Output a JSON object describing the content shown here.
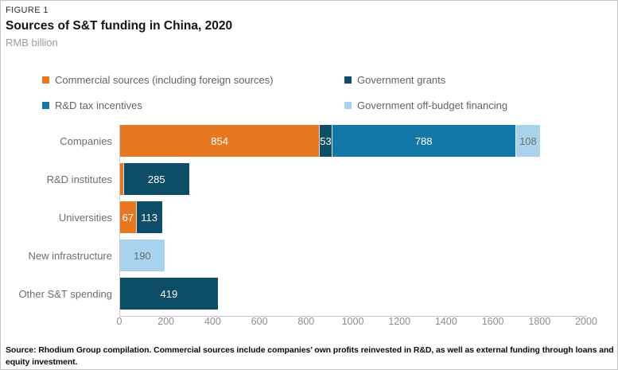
{
  "header": {
    "figure_label": "FIGURE 1",
    "title": "Sources of S&T funding in China, 2020",
    "subtitle": "RMB billion"
  },
  "legend": {
    "items": [
      {
        "key": "commercial",
        "label": "Commercial sources (including foreign sources)"
      },
      {
        "key": "grants",
        "label": "Government grants"
      },
      {
        "key": "tax",
        "label": "R&D tax incentives"
      },
      {
        "key": "offbudget",
        "label": "Government off-budget financing"
      }
    ]
  },
  "chart_data": {
    "type": "bar",
    "orientation": "horizontal",
    "title": "Sources of S&T funding in China, 2020",
    "units": "RMB billion",
    "xlim": [
      0,
      2000
    ],
    "xticks": [
      0,
      200,
      400,
      600,
      800,
      1000,
      1200,
      1400,
      1600,
      1800,
      2000
    ],
    "grid": "off",
    "legend_position": "top",
    "categories": [
      "Companies",
      "R&D institutes",
      "Universities",
      "New infrastructure",
      "Other S&T spending"
    ],
    "series_colors": {
      "commercial": "#E87722",
      "grants": "#0D4D68",
      "tax": "#1377A8",
      "offbudget": "#A9D3EC"
    },
    "label_colors": {
      "commercial": "#ffffff",
      "grants": "#ffffff",
      "tax": "#ffffff",
      "offbudget": "#6e6e6e"
    },
    "rows": [
      {
        "category": "Companies",
        "segments": [
          {
            "series": "commercial",
            "value": 854,
            "label": "854"
          },
          {
            "series": "grants",
            "value": 53,
            "label": "53"
          },
          {
            "series": "tax",
            "value": 788,
            "label": "788"
          },
          {
            "series": "offbudget",
            "value": 108,
            "label": "108"
          }
        ]
      },
      {
        "category": "R&D institutes",
        "segments": [
          {
            "series": "commercial",
            "value": 12,
            "label": ""
          },
          {
            "series": "grants",
            "value": 285,
            "label": "285"
          }
        ]
      },
      {
        "category": "Universities",
        "segments": [
          {
            "series": "commercial",
            "value": 67,
            "label": "67"
          },
          {
            "series": "grants",
            "value": 113,
            "label": "113"
          }
        ]
      },
      {
        "category": "New infrastructure",
        "segments": [
          {
            "series": "offbudget",
            "value": 190,
            "label": "190"
          }
        ]
      },
      {
        "category": "Other S&T spending",
        "segments": [
          {
            "series": "grants",
            "value": 419,
            "label": "419"
          }
        ]
      }
    ]
  },
  "footer": {
    "source_note": "Source: Rhodium Group compilation. Commercial sources include companies’ own profits reinvested in R&D, as well as external funding through loans and equity investment."
  }
}
